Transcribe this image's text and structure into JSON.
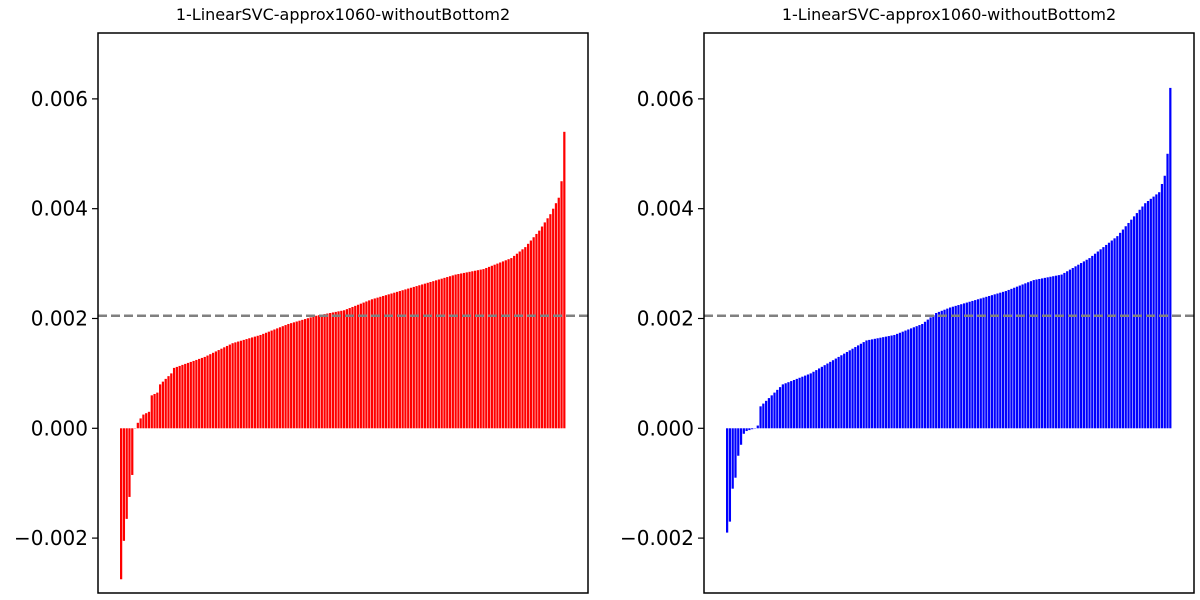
{
  "chart_data": [
    {
      "type": "bar",
      "title": "1-LinearSVC-approx1060-withoutBottom2",
      "xlabel": "",
      "ylabel": "",
      "ylim": [
        -0.003,
        0.0072
      ],
      "yticks": [
        -0.002,
        0.0,
        0.002,
        0.004,
        0.006
      ],
      "ytick_labels": [
        "−0.002",
        "0.000",
        "0.002",
        "0.004",
        "0.006"
      ],
      "xticks": "none",
      "grid": false,
      "bar_color": "#ff0000",
      "reference_line": {
        "y": 0.00205,
        "style": "dashed",
        "color": "#808080"
      },
      "sorted": "ascending",
      "count": 160,
      "anchors": [
        [
          0,
          -0.00275
        ],
        [
          1,
          -0.00205
        ],
        [
          2,
          -0.00165
        ],
        [
          3,
          -0.00125
        ],
        [
          4,
          -0.00085
        ],
        [
          5,
          0.0
        ],
        [
          6,
          0.0001
        ],
        [
          7,
          0.00018
        ],
        [
          8,
          0.00025
        ],
        [
          10,
          0.0003
        ],
        [
          11,
          0.0006
        ],
        [
          13,
          0.00065
        ],
        [
          14,
          0.0008
        ],
        [
          16,
          0.0009
        ],
        [
          18,
          0.001
        ],
        [
          19,
          0.0011
        ],
        [
          30,
          0.0013
        ],
        [
          40,
          0.00155
        ],
        [
          50,
          0.0017
        ],
        [
          60,
          0.0019
        ],
        [
          70,
          0.00205
        ],
        [
          80,
          0.00215
        ],
        [
          90,
          0.00235
        ],
        [
          100,
          0.0025
        ],
        [
          110,
          0.00265
        ],
        [
          120,
          0.0028
        ],
        [
          130,
          0.0029
        ],
        [
          140,
          0.0031
        ],
        [
          145,
          0.0033
        ],
        [
          150,
          0.0036
        ],
        [
          154,
          0.0039
        ],
        [
          157,
          0.0042
        ],
        [
          158,
          0.0045
        ],
        [
          159,
          0.0054
        ]
      ]
    },
    {
      "type": "bar",
      "title": "1-LinearSVC-approx1060-withoutBottom2",
      "xlabel": "",
      "ylabel": "",
      "ylim": [
        -0.003,
        0.0072
      ],
      "yticks": [
        -0.002,
        0.0,
        0.002,
        0.004,
        0.006
      ],
      "ytick_labels": [
        "−0.002",
        "0.000",
        "0.002",
        "0.004",
        "0.006"
      ],
      "xticks": "none",
      "grid": false,
      "bar_color": "#0000ff",
      "reference_line": {
        "y": 0.00205,
        "style": "dashed",
        "color": "#808080"
      },
      "sorted": "ascending",
      "count": 160,
      "anchors": [
        [
          0,
          -0.0019
        ],
        [
          1,
          -0.0017
        ],
        [
          2,
          -0.0011
        ],
        [
          3,
          -0.0009
        ],
        [
          4,
          -0.0005
        ],
        [
          5,
          -0.0003
        ],
        [
          6,
          -0.0001
        ],
        [
          7,
          -5e-05
        ],
        [
          10,
          0.0
        ],
        [
          11,
          5e-05
        ],
        [
          12,
          0.0004
        ],
        [
          14,
          0.0005
        ],
        [
          20,
          0.0008
        ],
        [
          30,
          0.001
        ],
        [
          40,
          0.0013
        ],
        [
          50,
          0.0016
        ],
        [
          60,
          0.0017
        ],
        [
          70,
          0.0019
        ],
        [
          75,
          0.0021
        ],
        [
          80,
          0.0022
        ],
        [
          90,
          0.00235
        ],
        [
          100,
          0.0025
        ],
        [
          110,
          0.0027
        ],
        [
          120,
          0.0028
        ],
        [
          130,
          0.0031
        ],
        [
          140,
          0.0035
        ],
        [
          145,
          0.0038
        ],
        [
          150,
          0.0041
        ],
        [
          155,
          0.0043
        ],
        [
          157,
          0.0046
        ],
        [
          158,
          0.005
        ],
        [
          159,
          0.0062
        ]
      ]
    }
  ]
}
